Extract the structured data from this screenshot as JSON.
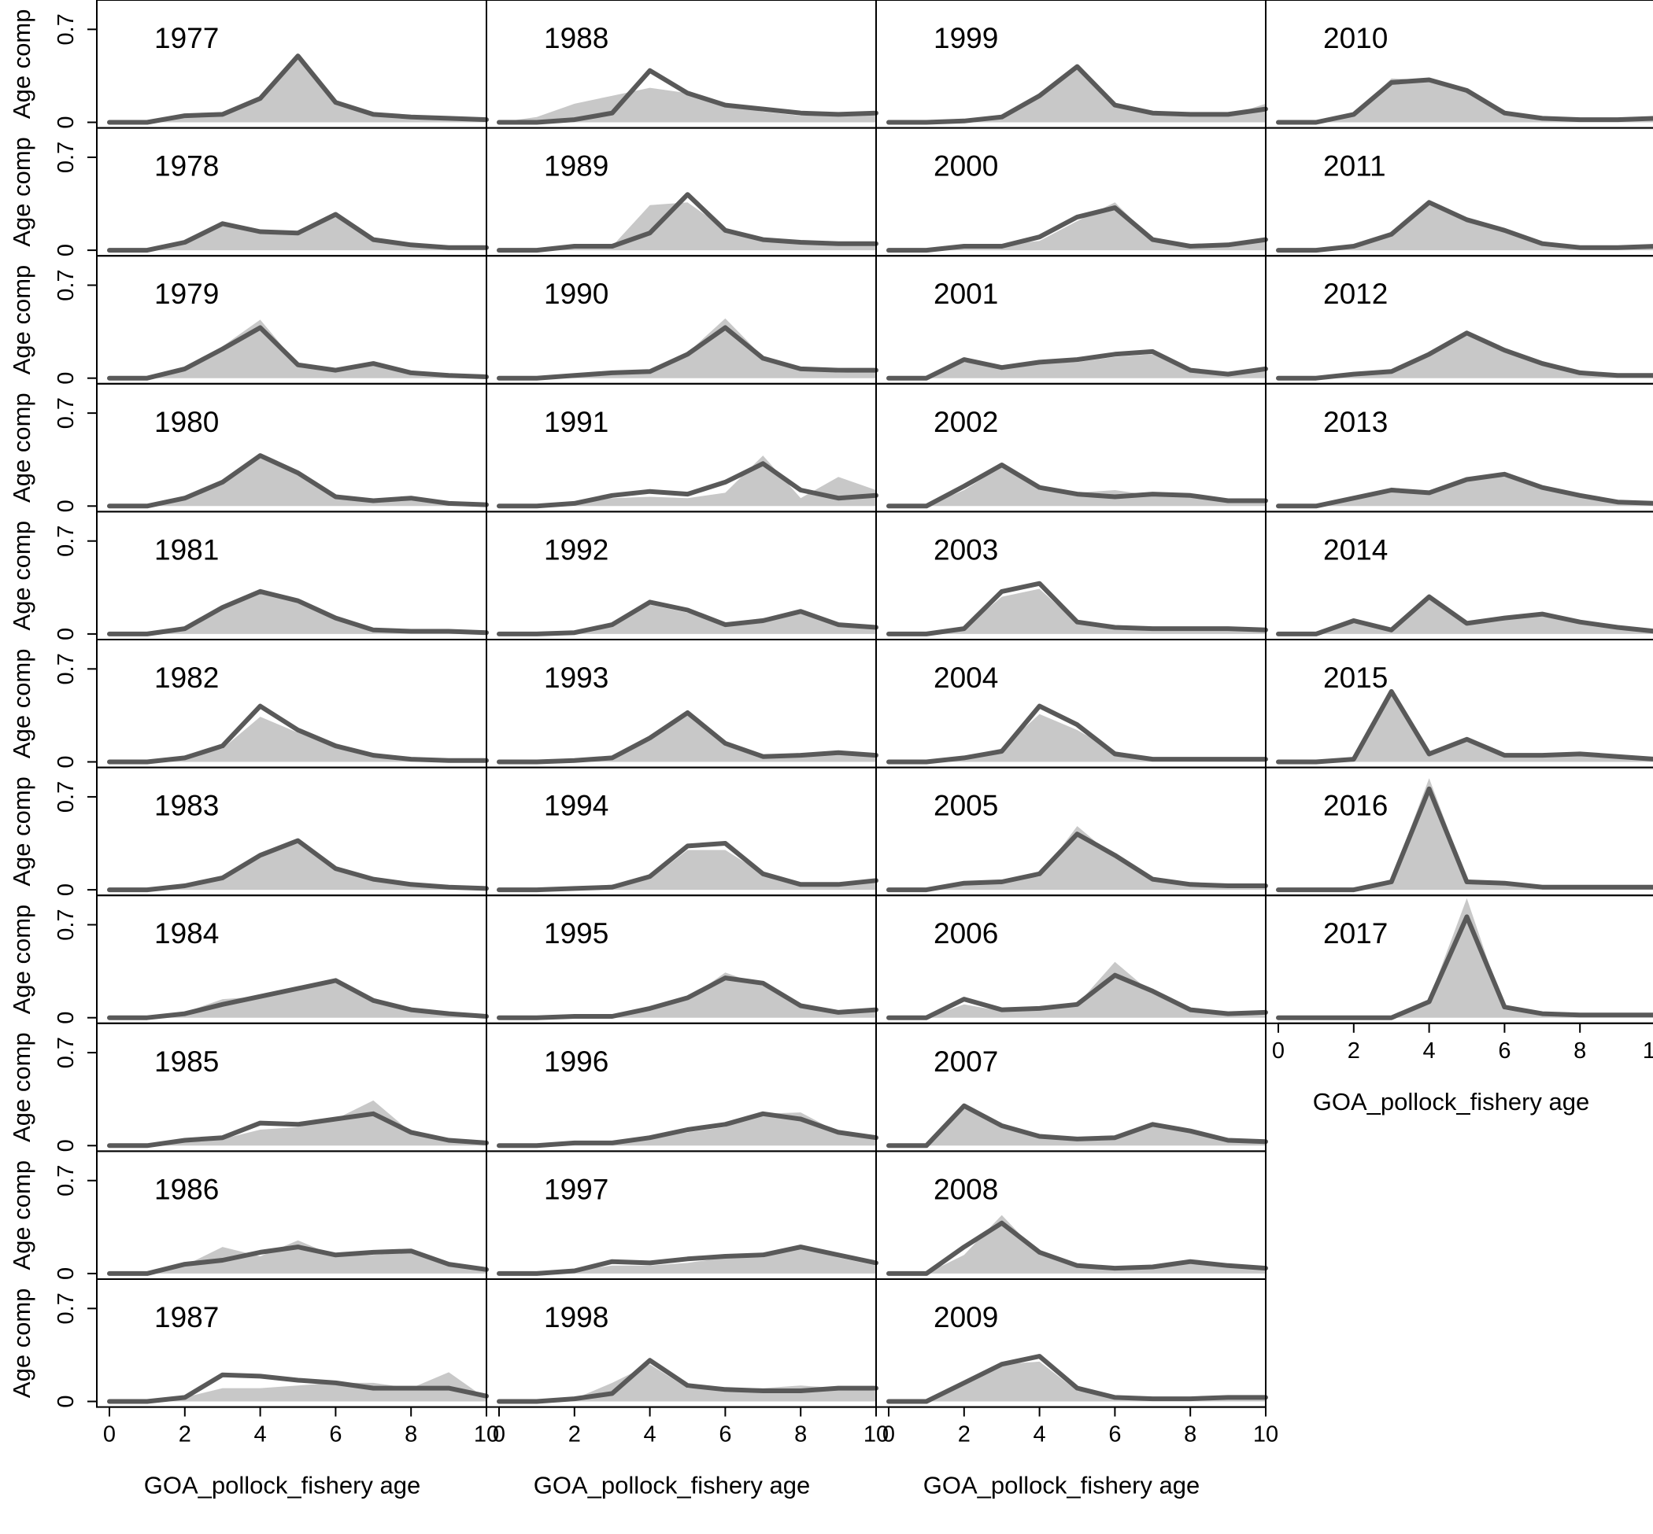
{
  "chart_data": {
    "type": "line",
    "layout": "small-multiples",
    "xlabel": "GOA_pollock_fishery age",
    "ylabel": "Age comp",
    "x": [
      0,
      1,
      2,
      3,
      4,
      5,
      6,
      7,
      8,
      9,
      10
    ],
    "xticks": [
      0,
      2,
      4,
      6,
      8,
      10
    ],
    "xlim": [
      0,
      10
    ],
    "ylim": [
      0,
      0.85
    ],
    "yticks": [
      0,
      0.7
    ],
    "ytick_labels": [
      "0",
      "0.7"
    ],
    "series_styles": {
      "observed": {
        "form": "filled area",
        "color": "#c8c8c8"
      },
      "expected": {
        "form": "line",
        "color": "#595959"
      }
    },
    "panels": [
      {
        "year": "1977",
        "observed": [
          0,
          0,
          0.05,
          0.06,
          0.18,
          0.52,
          0.16,
          0.06,
          0.04,
          0.03,
          0.02
        ],
        "expected": [
          0,
          0,
          0.05,
          0.06,
          0.18,
          0.5,
          0.15,
          0.06,
          0.04,
          0.03,
          0.02
        ]
      },
      {
        "year": "1978",
        "observed": [
          0,
          0,
          0.06,
          0.2,
          0.14,
          0.13,
          0.27,
          0.08,
          0.04,
          0.02,
          0.02
        ],
        "expected": [
          0,
          0,
          0.06,
          0.2,
          0.14,
          0.13,
          0.27,
          0.08,
          0.04,
          0.02,
          0.02
        ]
      },
      {
        "year": "1979",
        "observed": [
          0,
          0,
          0.07,
          0.24,
          0.44,
          0.1,
          0.06,
          0.1,
          0.04,
          0.02,
          0.01
        ],
        "expected": [
          0,
          0,
          0.07,
          0.22,
          0.38,
          0.1,
          0.06,
          0.11,
          0.04,
          0.02,
          0.01
        ]
      },
      {
        "year": "1980",
        "observed": [
          0,
          0,
          0.06,
          0.18,
          0.36,
          0.24,
          0.07,
          0.04,
          0.05,
          0.02,
          0.01
        ],
        "expected": [
          0,
          0,
          0.06,
          0.18,
          0.38,
          0.25,
          0.07,
          0.04,
          0.06,
          0.02,
          0.01
        ]
      },
      {
        "year": "1981",
        "observed": [
          0,
          0,
          0.04,
          0.2,
          0.34,
          0.26,
          0.12,
          0.04,
          0.02,
          0.02,
          0.01
        ],
        "expected": [
          0,
          0,
          0.04,
          0.2,
          0.32,
          0.25,
          0.12,
          0.03,
          0.02,
          0.02,
          0.01
        ]
      },
      {
        "year": "1982",
        "observed": [
          0,
          0,
          0.03,
          0.1,
          0.34,
          0.22,
          0.12,
          0.06,
          0.03,
          0.01,
          0.01
        ],
        "expected": [
          0,
          0,
          0.03,
          0.12,
          0.42,
          0.24,
          0.12,
          0.05,
          0.02,
          0.01,
          0.01
        ]
      },
      {
        "year": "1983",
        "observed": [
          0,
          0,
          0.03,
          0.1,
          0.24,
          0.38,
          0.16,
          0.08,
          0.04,
          0.02,
          0.01
        ],
        "expected": [
          0,
          0,
          0.03,
          0.09,
          0.26,
          0.37,
          0.16,
          0.08,
          0.04,
          0.02,
          0.01
        ]
      },
      {
        "year": "1984",
        "observed": [
          0,
          0,
          0.04,
          0.14,
          0.16,
          0.22,
          0.26,
          0.12,
          0.06,
          0.03,
          0.01
        ],
        "expected": [
          0,
          0,
          0.03,
          0.1,
          0.16,
          0.22,
          0.28,
          0.13,
          0.06,
          0.03,
          0.01
        ]
      },
      {
        "year": "1985",
        "observed": [
          0,
          0,
          0.03,
          0.05,
          0.12,
          0.14,
          0.2,
          0.34,
          0.1,
          0.05,
          0.02
        ],
        "expected": [
          0,
          0,
          0.04,
          0.06,
          0.17,
          0.16,
          0.2,
          0.24,
          0.1,
          0.04,
          0.02
        ]
      },
      {
        "year": "1986",
        "observed": [
          0,
          0,
          0.06,
          0.2,
          0.13,
          0.25,
          0.13,
          0.14,
          0.16,
          0.06,
          0.03
        ],
        "expected": [
          0,
          0,
          0.07,
          0.1,
          0.16,
          0.2,
          0.14,
          0.16,
          0.17,
          0.07,
          0.03
        ]
      },
      {
        "year": "1987",
        "observed": [
          0,
          0,
          0.03,
          0.1,
          0.1,
          0.12,
          0.14,
          0.14,
          0.1,
          0.22,
          0.02
        ],
        "expected": [
          0,
          0,
          0.03,
          0.2,
          0.19,
          0.16,
          0.14,
          0.1,
          0.1,
          0.1,
          0.04
        ]
      },
      {
        "year": "1988",
        "observed": [
          0,
          0.04,
          0.14,
          0.2,
          0.26,
          0.22,
          0.13,
          0.08,
          0.05,
          0.06,
          0.05
        ],
        "expected": [
          0,
          0,
          0.02,
          0.07,
          0.39,
          0.22,
          0.13,
          0.1,
          0.07,
          0.06,
          0.07
        ]
      },
      {
        "year": "1989",
        "observed": [
          0,
          0,
          0.02,
          0.03,
          0.34,
          0.36,
          0.16,
          0.08,
          0.06,
          0.04,
          0.04
        ],
        "expected": [
          0,
          0,
          0.03,
          0.03,
          0.13,
          0.42,
          0.15,
          0.08,
          0.06,
          0.05,
          0.05
        ]
      },
      {
        "year": "1990",
        "observed": [
          0,
          0,
          0.02,
          0.04,
          0.04,
          0.19,
          0.45,
          0.16,
          0.07,
          0.04,
          0.05
        ],
        "expected": [
          0,
          0,
          0.02,
          0.04,
          0.05,
          0.18,
          0.38,
          0.15,
          0.07,
          0.06,
          0.06
        ]
      },
      {
        "year": "1991",
        "observed": [
          0,
          0,
          0.02,
          0.06,
          0.07,
          0.06,
          0.1,
          0.38,
          0.06,
          0.22,
          0.12
        ],
        "expected": [
          0,
          0,
          0.02,
          0.08,
          0.11,
          0.09,
          0.18,
          0.32,
          0.12,
          0.06,
          0.08
        ]
      },
      {
        "year": "1992",
        "observed": [
          0,
          0,
          0.02,
          0.06,
          0.22,
          0.16,
          0.08,
          0.12,
          0.16,
          0.06,
          0.05
        ],
        "expected": [
          0,
          0,
          0.01,
          0.07,
          0.24,
          0.18,
          0.07,
          0.1,
          0.17,
          0.07,
          0.05
        ]
      },
      {
        "year": "1993",
        "observed": [
          0,
          0,
          0.01,
          0.04,
          0.2,
          0.38,
          0.12,
          0.05,
          0.06,
          0.07,
          0.05
        ],
        "expected": [
          0,
          0,
          0.01,
          0.03,
          0.18,
          0.37,
          0.14,
          0.04,
          0.05,
          0.07,
          0.05
        ]
      },
      {
        "year": "1994",
        "observed": [
          0,
          0,
          0.01,
          0.04,
          0.08,
          0.3,
          0.3,
          0.12,
          0.04,
          0.04,
          0.06
        ],
        "expected": [
          0,
          0,
          0.01,
          0.02,
          0.1,
          0.33,
          0.35,
          0.12,
          0.04,
          0.04,
          0.07
        ]
      },
      {
        "year": "1995",
        "observed": [
          0,
          0,
          0.01,
          0.02,
          0.06,
          0.14,
          0.34,
          0.24,
          0.1,
          0.04,
          0.05
        ],
        "expected": [
          0,
          0,
          0.01,
          0.01,
          0.07,
          0.15,
          0.3,
          0.26,
          0.09,
          0.04,
          0.06
        ]
      },
      {
        "year": "1996",
        "observed": [
          0,
          0,
          0.01,
          0.02,
          0.06,
          0.1,
          0.14,
          0.24,
          0.25,
          0.1,
          0.08
        ],
        "expected": [
          0,
          0,
          0.02,
          0.02,
          0.06,
          0.12,
          0.16,
          0.24,
          0.2,
          0.1,
          0.06
        ]
      },
      {
        "year": "1997",
        "observed": [
          0,
          0,
          0.02,
          0.06,
          0.06,
          0.08,
          0.12,
          0.12,
          0.2,
          0.12,
          0.06
        ],
        "expected": [
          0,
          0,
          0.02,
          0.09,
          0.08,
          0.11,
          0.13,
          0.14,
          0.2,
          0.14,
          0.08
        ]
      },
      {
        "year": "1998",
        "observed": [
          0,
          0,
          0.02,
          0.14,
          0.28,
          0.1,
          0.1,
          0.1,
          0.12,
          0.1,
          0.08
        ],
        "expected": [
          0,
          0,
          0.02,
          0.06,
          0.31,
          0.12,
          0.09,
          0.08,
          0.08,
          0.1,
          0.1
        ]
      },
      {
        "year": "1999",
        "observed": [
          0,
          0,
          0.01,
          0.05,
          0.2,
          0.4,
          0.14,
          0.08,
          0.05,
          0.05,
          0.14
        ],
        "expected": [
          0,
          0,
          0.01,
          0.04,
          0.2,
          0.42,
          0.13,
          0.07,
          0.06,
          0.06,
          0.1
        ]
      },
      {
        "year": "2000",
        "observed": [
          0,
          0,
          0.02,
          0.04,
          0.07,
          0.22,
          0.36,
          0.08,
          0.04,
          0.04,
          0.08
        ],
        "expected": [
          0,
          0,
          0.03,
          0.03,
          0.1,
          0.25,
          0.32,
          0.08,
          0.03,
          0.04,
          0.08
        ]
      },
      {
        "year": "2001",
        "observed": [
          0,
          0,
          0.12,
          0.08,
          0.11,
          0.12,
          0.16,
          0.18,
          0.06,
          0.03,
          0.06
        ],
        "expected": [
          0,
          0,
          0.14,
          0.08,
          0.12,
          0.14,
          0.18,
          0.2,
          0.06,
          0.03,
          0.07
        ]
      },
      {
        "year": "2002",
        "observed": [
          0,
          0,
          0.12,
          0.3,
          0.12,
          0.1,
          0.12,
          0.08,
          0.08,
          0.04,
          0.04
        ],
        "expected": [
          0,
          0,
          0.15,
          0.31,
          0.14,
          0.09,
          0.07,
          0.09,
          0.08,
          0.04,
          0.04
        ]
      },
      {
        "year": "2003",
        "observed": [
          0,
          0,
          0.04,
          0.28,
          0.34,
          0.08,
          0.04,
          0.03,
          0.03,
          0.03,
          0.02
        ],
        "expected": [
          0,
          0,
          0.04,
          0.32,
          0.38,
          0.09,
          0.05,
          0.04,
          0.04,
          0.04,
          0.03
        ]
      },
      {
        "year": "2004",
        "observed": [
          0,
          0,
          0.04,
          0.1,
          0.36,
          0.24,
          0.08,
          0.03,
          0.02,
          0.01,
          0.01
        ],
        "expected": [
          0,
          0,
          0.03,
          0.08,
          0.42,
          0.28,
          0.06,
          0.02,
          0.02,
          0.02,
          0.02
        ]
      },
      {
        "year": "2005",
        "observed": [
          0,
          0,
          0.04,
          0.06,
          0.1,
          0.48,
          0.24,
          0.08,
          0.04,
          0.03,
          0.03
        ],
        "expected": [
          0,
          0,
          0.05,
          0.06,
          0.12,
          0.42,
          0.26,
          0.08,
          0.04,
          0.03,
          0.03
        ]
      },
      {
        "year": "2006",
        "observed": [
          0,
          0,
          0.1,
          0.05,
          0.06,
          0.1,
          0.42,
          0.18,
          0.05,
          0.02,
          0.02
        ],
        "expected": [
          0,
          0,
          0.14,
          0.06,
          0.07,
          0.1,
          0.32,
          0.2,
          0.06,
          0.03,
          0.04
        ]
      },
      {
        "year": "2007",
        "observed": [
          0,
          0,
          0.28,
          0.14,
          0.08,
          0.06,
          0.06,
          0.16,
          0.12,
          0.04,
          0.03
        ],
        "expected": [
          0,
          0,
          0.3,
          0.15,
          0.07,
          0.05,
          0.06,
          0.16,
          0.11,
          0.04,
          0.03
        ]
      },
      {
        "year": "2008",
        "observed": [
          0,
          0,
          0.14,
          0.44,
          0.14,
          0.06,
          0.04,
          0.04,
          0.08,
          0.06,
          0.04
        ],
        "expected": [
          0,
          0,
          0.2,
          0.38,
          0.16,
          0.06,
          0.04,
          0.05,
          0.09,
          0.06,
          0.04
        ]
      },
      {
        "year": "2009",
        "observed": [
          0,
          0,
          0.12,
          0.28,
          0.3,
          0.08,
          0.04,
          0.02,
          0.02,
          0.03,
          0.02
        ],
        "expected": [
          0,
          0,
          0.14,
          0.28,
          0.34,
          0.1,
          0.03,
          0.02,
          0.02,
          0.03,
          0.03
        ]
      },
      {
        "year": "2010",
        "observed": [
          0,
          0,
          0.06,
          0.33,
          0.32,
          0.24,
          0.08,
          0.03,
          0.02,
          0.02,
          0.02
        ],
        "expected": [
          0,
          0,
          0.06,
          0.3,
          0.32,
          0.24,
          0.07,
          0.03,
          0.02,
          0.02,
          0.03
        ]
      },
      {
        "year": "2011",
        "observed": [
          0,
          0,
          0.03,
          0.12,
          0.34,
          0.22,
          0.16,
          0.05,
          0.02,
          0.02,
          0.02
        ],
        "expected": [
          0,
          0,
          0.03,
          0.12,
          0.36,
          0.23,
          0.15,
          0.05,
          0.02,
          0.02,
          0.03
        ]
      },
      {
        "year": "2012",
        "observed": [
          0,
          0,
          0.03,
          0.05,
          0.18,
          0.32,
          0.22,
          0.12,
          0.04,
          0.02,
          0.02
        ],
        "expected": [
          0,
          0,
          0.03,
          0.05,
          0.18,
          0.34,
          0.21,
          0.11,
          0.04,
          0.02,
          0.02
        ]
      },
      {
        "year": "2013",
        "observed": [
          0,
          0,
          0.06,
          0.14,
          0.1,
          0.2,
          0.24,
          0.14,
          0.08,
          0.03,
          0.02
        ],
        "expected": [
          0,
          0,
          0.06,
          0.12,
          0.1,
          0.2,
          0.24,
          0.14,
          0.08,
          0.03,
          0.02
        ]
      },
      {
        "year": "2014",
        "observed": [
          0,
          0,
          0.1,
          0.03,
          0.28,
          0.08,
          0.12,
          0.16,
          0.1,
          0.06,
          0.02
        ],
        "expected": [
          0,
          0,
          0.1,
          0.03,
          0.28,
          0.08,
          0.12,
          0.15,
          0.09,
          0.05,
          0.02
        ]
      },
      {
        "year": "2015",
        "observed": [
          0,
          0,
          0.02,
          0.52,
          0.06,
          0.16,
          0.06,
          0.06,
          0.06,
          0.04,
          0.02
        ],
        "expected": [
          0,
          0,
          0.02,
          0.53,
          0.06,
          0.17,
          0.05,
          0.05,
          0.06,
          0.04,
          0.02
        ]
      },
      {
        "year": "2016",
        "observed": [
          0,
          0,
          0,
          0.08,
          0.84,
          0.08,
          0.04,
          0.02,
          0.02,
          0.01,
          0.01
        ],
        "expected": [
          0,
          0,
          0,
          0.06,
          0.76,
          0.06,
          0.05,
          0.02,
          0.02,
          0.02,
          0.02
        ]
      },
      {
        "year": "2017",
        "observed": [
          0,
          0,
          0,
          0,
          0.14,
          0.9,
          0.06,
          0.02,
          0.01,
          0.01,
          0.01
        ],
        "expected": [
          0,
          0,
          0,
          0,
          0.12,
          0.76,
          0.08,
          0.03,
          0.02,
          0.02,
          0.02
        ]
      }
    ]
  }
}
